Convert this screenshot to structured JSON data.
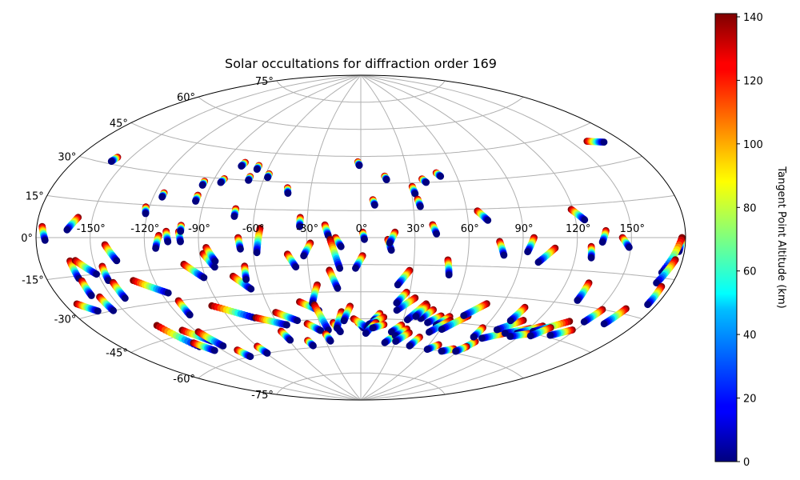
{
  "chart_data": {
    "type": "scatter",
    "projection": "aitoff",
    "title": "Solar occultations for diffraction order 169",
    "xlabel": "",
    "ylabel": "",
    "x_ticks": [
      "-150°",
      "-120°",
      "-90°",
      "-60°",
      "-30°",
      "0°",
      "30°",
      "60°",
      "90°",
      "120°",
      "150°"
    ],
    "x_tick_values": [
      -150,
      -120,
      -90,
      -60,
      -30,
      0,
      30,
      60,
      90,
      120,
      150
    ],
    "y_ticks": [
      "75°",
      "60°",
      "45°",
      "30°",
      "15°",
      "0°",
      "-15°",
      "-30°",
      "-45°",
      "-60°",
      "-75°"
    ],
    "y_tick_values": [
      75,
      60,
      45,
      30,
      15,
      0,
      -15,
      -30,
      -45,
      -60,
      -75
    ],
    "grid": true,
    "colorbar": {
      "label": "Tangent Point Altitude (km)",
      "ticks": [
        "0",
        "20",
        "40",
        "60",
        "80",
        "100",
        "120",
        "140"
      ],
      "tick_values": [
        0,
        20,
        40,
        60,
        80,
        100,
        120,
        140
      ],
      "range": [
        0,
        141
      ],
      "colormap": "jet",
      "placement": "right"
    },
    "altitude_range_km": [
      0,
      141
    ],
    "tracks": [
      {
        "start": [
          -177,
          4
        ],
        "end": [
          -175,
          -1
        ]
      },
      {
        "start": [
          -158,
          8
        ],
        "end": [
          -163,
          3
        ]
      },
      {
        "start": [
          -158,
          33
        ],
        "end": [
          -159,
          31
        ]
      },
      {
        "start": [
          -163,
          -9
        ],
        "end": [
          -162,
          -16
        ]
      },
      {
        "start": [
          -160,
          -9
        ],
        "end": [
          -151,
          -15
        ]
      },
      {
        "start": [
          -142,
          -3
        ],
        "end": [
          -137,
          -10
        ]
      },
      {
        "start": [
          -146,
          -12
        ],
        "end": [
          -146,
          -18
        ]
      },
      {
        "start": [
          -144,
          -19
        ],
        "end": [
          -143,
          -26
        ]
      },
      {
        "start": [
          -161,
          -17
        ],
        "end": [
          -161,
          -23
        ]
      },
      {
        "start": [
          -157,
          -24
        ],
        "end": [
          -156,
          -30
        ]
      },
      {
        "start": [
          -173,
          -25
        ],
        "end": [
          -165,
          -29
        ]
      },
      {
        "start": [
          -122,
          14
        ],
        "end": [
          -121,
          11
        ]
      },
      {
        "start": [
          -115,
          21
        ],
        "end": [
          -115,
          19
        ]
      },
      {
        "start": [
          -112,
          1
        ],
        "end": [
          -114,
          -5
        ]
      },
      {
        "start": [
          -132,
          -19
        ],
        "end": [
          -116,
          -26
        ]
      },
      {
        "start": [
          -101,
          3
        ],
        "end": [
          -100,
          -2
        ]
      },
      {
        "start": [
          -108,
          3
        ],
        "end": [
          -107,
          -2
        ]
      },
      {
        "start": [
          -100,
          6
        ],
        "end": [
          -100,
          3
        ]
      },
      {
        "start": [
          -95,
          21
        ],
        "end": [
          -95,
          18
        ]
      },
      {
        "start": [
          -95,
          28
        ],
        "end": [
          -95,
          26
        ]
      },
      {
        "start": [
          -84,
          30
        ],
        "end": [
          -85,
          28
        ]
      },
      {
        "start": [
          -77,
          39
        ],
        "end": [
          -78,
          37
        ]
      },
      {
        "start": [
          -67,
          38
        ],
        "end": [
          -67,
          36
        ]
      },
      {
        "start": [
          -69,
          32
        ],
        "end": [
          -69,
          30
        ]
      },
      {
        "start": [
          -58,
          34
        ],
        "end": [
          -58,
          32
        ]
      },
      {
        "start": [
          -71,
          15
        ],
        "end": [
          -71,
          11
        ]
      },
      {
        "start": [
          -44,
          27
        ],
        "end": [
          -43,
          24
        ]
      },
      {
        "start": [
          -34,
          11
        ],
        "end": [
          -34,
          6
        ]
      },
      {
        "start": [
          -68,
          0
        ],
        "end": [
          -67,
          -6
        ]
      },
      {
        "start": [
          -56,
          5
        ],
        "end": [
          -58,
          -8
        ]
      },
      {
        "start": [
          -100,
          -13
        ],
        "end": [
          -91,
          -20
        ]
      },
      {
        "start": [
          -88,
          -8
        ],
        "end": [
          -83,
          -15
        ]
      },
      {
        "start": [
          -86,
          -5
        ],
        "end": [
          -82,
          -12
        ]
      },
      {
        "start": [
          -74,
          -20
        ],
        "end": [
          -66,
          -27
        ]
      },
      {
        "start": [
          -66,
          -15
        ],
        "end": [
          -67,
          -22
        ]
      },
      {
        "start": [
          -41,
          -9
        ],
        "end": [
          -37,
          -16
        ]
      },
      {
        "start": [
          -28,
          -3
        ],
        "end": [
          -32,
          -10
        ]
      },
      {
        "start": [
          -20,
          7
        ],
        "end": [
          -18,
          1
        ]
      },
      {
        "start": [
          -14,
          0
        ],
        "end": [
          -11,
          -5
        ]
      },
      {
        "start": [
          -17,
          -1
        ],
        "end": [
          -12,
          -17
        ]
      },
      {
        "start": [
          -2,
          42
        ],
        "end": [
          -1,
          40
        ]
      },
      {
        "start": [
          1,
          3
        ],
        "end": [
          2,
          -1
        ]
      },
      {
        "start": [
          1,
          -10
        ],
        "end": [
          -3,
          -17
        ]
      },
      {
        "start": [
          7,
          21
        ],
        "end": [
          8,
          18
        ]
      },
      {
        "start": [
          15,
          34
        ],
        "end": [
          16,
          32
        ]
      },
      {
        "start": [
          15,
          -1
        ],
        "end": [
          17,
          -7
        ]
      },
      {
        "start": [
          19,
          3
        ],
        "end": [
          16,
          -3
        ]
      },
      {
        "start": [
          31,
          28
        ],
        "end": [
          32,
          24
        ]
      },
      {
        "start": [
          33,
          21
        ],
        "end": [
          34,
          17
        ]
      },
      {
        "start": [
          38,
          32
        ],
        "end": [
          40,
          30
        ]
      },
      {
        "start": [
          48,
          35
        ],
        "end": [
          50,
          33
        ]
      },
      {
        "start": [
          40,
          7
        ],
        "end": [
          42,
          2
        ]
      },
      {
        "start": [
          49,
          -12
        ],
        "end": [
          51,
          -20
        ]
      },
      {
        "start": [
          28,
          -18
        ],
        "end": [
          22,
          -26
        ]
      },
      {
        "start": [
          66,
          14
        ],
        "end": [
          71,
          9
        ]
      },
      {
        "start": [
          77,
          -2
        ],
        "end": [
          80,
          -9
        ]
      },
      {
        "start": [
          96,
          0
        ],
        "end": [
          93,
          -7
        ]
      },
      {
        "start": [
          108,
          -5
        ],
        "end": [
          100,
          -12
        ]
      },
      {
        "start": [
          119,
          13
        ],
        "end": [
          125,
          8
        ]
      },
      {
        "start": [
          128,
          -4
        ],
        "end": [
          129,
          -9
        ]
      },
      {
        "start": [
          136,
          3
        ],
        "end": [
          134,
          -2
        ]
      },
      {
        "start": [
          133,
          -20
        ],
        "end": [
          133,
          -28
        ]
      },
      {
        "start": [
          145,
          0
        ],
        "end": [
          149,
          -4
        ]
      },
      {
        "start": [
          160,
          40
        ],
        "end": [
          169,
          38
        ]
      },
      {
        "start": [
          178,
          0
        ],
        "end": [
          177,
          -5
        ]
      },
      {
        "start": [
          178,
          0
        ],
        "end": [
          171,
          -13
        ]
      },
      {
        "start": [
          176,
          -8
        ],
        "end": [
          171,
          -17
        ]
      },
      {
        "start": [
          175,
          -18
        ],
        "end": [
          175,
          -25
        ]
      },
      {
        "start": [
          165,
          -28
        ],
        "end": [
          162,
          -35
        ]
      },
      {
        "start": [
          -140,
          -39
        ],
        "end": [
          -132,
          -51
        ]
      },
      {
        "start": [
          -128,
          -43
        ],
        "end": [
          -118,
          -50
        ]
      },
      {
        "start": [
          -132,
          -49
        ],
        "end": [
          -126,
          -54
        ]
      },
      {
        "start": [
          -119,
          -45
        ],
        "end": [
          -115,
          -53
        ]
      },
      {
        "start": [
          -113,
          -30
        ],
        "end": [
          -113,
          -37
        ]
      },
      {
        "start": [
          -109,
          -56
        ],
        "end": [
          -107,
          -60
        ]
      },
      {
        "start": [
          -90,
          -56
        ],
        "end": [
          -89,
          -60
        ]
      },
      {
        "start": [
          -95,
          -34
        ],
        "end": [
          -73,
          -42
        ]
      },
      {
        "start": [
          -72,
          -42
        ],
        "end": [
          -54,
          -47
        ]
      },
      {
        "start": [
          -57,
          -40
        ],
        "end": [
          -45,
          -45
        ]
      },
      {
        "start": [
          -61,
          -50
        ],
        "end": [
          -59,
          -55
        ]
      },
      {
        "start": [
          -45,
          -56
        ],
        "end": [
          -43,
          -59
        ]
      },
      {
        "start": [
          -39,
          -35
        ],
        "end": [
          -28,
          -40
        ]
      },
      {
        "start": [
          -39,
          -47
        ],
        "end": [
          -31,
          -51
        ]
      },
      {
        "start": [
          -26,
          -26
        ],
        "end": [
          -31,
          -36
        ]
      },
      {
        "start": [
          -30,
          -37
        ],
        "end": [
          -25,
          -51
        ]
      },
      {
        "start": [
          -28,
          -53
        ],
        "end": [
          -26,
          -57
        ]
      },
      {
        "start": [
          -20,
          -47
        ],
        "end": [
          -16,
          -52
        ]
      },
      {
        "start": [
          -13,
          -41
        ],
        "end": [
          -18,
          -50
        ]
      },
      {
        "start": [
          -7,
          -38
        ],
        "end": [
          -12,
          -46
        ]
      },
      {
        "start": [
          -18,
          -18
        ],
        "end": [
          -14,
          -28
        ]
      },
      {
        "start": [
          -2,
          -47
        ],
        "end": [
          2,
          -50
        ]
      },
      {
        "start": [
          -5,
          -45
        ],
        "end": [
          5,
          -50
        ]
      },
      {
        "start": [
          13,
          -42
        ],
        "end": [
          9,
          -46
        ]
      },
      {
        "start": [
          16,
          -44
        ],
        "end": [
          6,
          -48
        ]
      },
      {
        "start": [
          11,
          -47
        ],
        "end": [
          4,
          -53
        ]
      },
      {
        "start": [
          17,
          -48
        ],
        "end": [
          9,
          -50
        ]
      },
      {
        "start": [
          27,
          -54
        ],
        "end": [
          21,
          -58
        ]
      },
      {
        "start": [
          30,
          -48
        ],
        "end": [
          24,
          -52
        ]
      },
      {
        "start": [
          35,
          -50
        ],
        "end": [
          28,
          -54
        ]
      },
      {
        "start": [
          38,
          -52
        ],
        "end": [
          30,
          -57
        ]
      },
      {
        "start": [
          42,
          -36
        ],
        "end": [
          33,
          -45
        ]
      },
      {
        "start": [
          48,
          -39
        ],
        "end": [
          42,
          -44
        ]
      },
      {
        "start": [
          43,
          -37
        ],
        "end": [
          38,
          -43
        ]
      },
      {
        "start": [
          34,
          -33
        ],
        "end": [
          24,
          -40
        ]
      },
      {
        "start": [
          28,
          -30
        ],
        "end": [
          23,
          -36
        ]
      },
      {
        "start": [
          55,
          -42
        ],
        "end": [
          48,
          -46
        ]
      },
      {
        "start": [
          48,
          -54
        ],
        "end": [
          44,
          -59
        ]
      },
      {
        "start": [
          61,
          -42
        ],
        "end": [
          55,
          -47
        ]
      },
      {
        "start": [
          63,
          -44
        ],
        "end": [
          53,
          -51
        ]
      },
      {
        "start": [
          73,
          -41
        ],
        "end": [
          61,
          -49
        ]
      },
      {
        "start": [
          80,
          -34
        ],
        "end": [
          70,
          -41
        ]
      },
      {
        "start": [
          84,
          -58
        ],
        "end": [
          76,
          -60
        ]
      },
      {
        "start": [
          94,
          -53
        ],
        "end": [
          91,
          -57
        ]
      },
      {
        "start": [
          92,
          -56
        ],
        "end": [
          88,
          -59
        ]
      },
      {
        "start": [
          89,
          -46
        ],
        "end": [
          89,
          -51
        ]
      },
      {
        "start": [
          108,
          -47
        ],
        "end": [
          96,
          -51
        ]
      },
      {
        "start": [
          111,
          -40
        ],
        "end": [
          100,
          -46
        ]
      },
      {
        "start": [
          105,
          -34
        ],
        "end": [
          103,
          -41
        ]
      },
      {
        "start": [
          121,
          -43
        ],
        "end": [
          108,
          -47
        ]
      },
      {
        "start": [
          127,
          -41
        ],
        "end": [
          116,
          -46
        ]
      },
      {
        "start": [
          125,
          -45
        ],
        "end": [
          114,
          -48
        ]
      },
      {
        "start": [
          140,
          -37
        ],
        "end": [
          125,
          -44
        ]
      },
      {
        "start": [
          133,
          -41
        ],
        "end": [
          127,
          -46
        ]
      },
      {
        "start": [
          148,
          -40
        ],
        "end": [
          139,
          -44
        ]
      },
      {
        "start": [
          152,
          -30
        ],
        "end": [
          149,
          -36
        ]
      },
      {
        "start": [
          68,
          -57
        ],
        "end": [
          62,
          -60
        ]
      }
    ]
  }
}
